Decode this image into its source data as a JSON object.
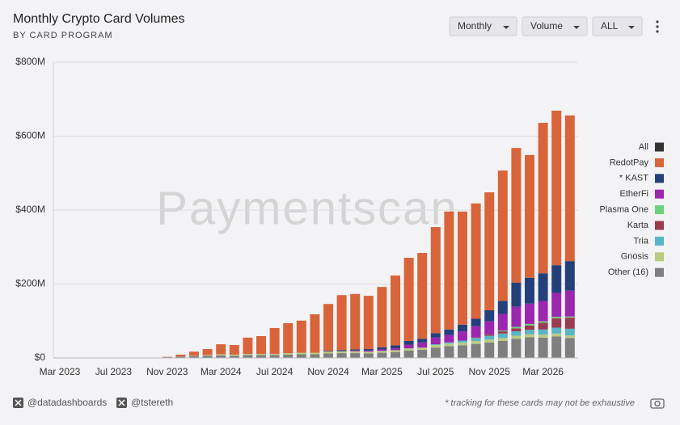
{
  "chart_data": {
    "type": "stacked_bar",
    "title": "Monthly Crypto Card Volumes",
    "subtitle": "BY CARD PROGRAM",
    "watermark": "Paymentscan",
    "footnote": "* tracking for these cards may not be exhaustive",
    "legend_all": "All",
    "legend_all_color": "#333333",
    "categories": [
      "Mar 2023",
      null,
      null,
      null,
      "Jul 2023",
      null,
      null,
      null,
      "Nov 2023",
      null,
      null,
      null,
      "Mar 2024",
      null,
      null,
      null,
      "Jul 2024",
      null,
      null,
      null,
      "Nov 2024",
      null,
      null,
      null,
      "Mar 2025",
      null,
      null,
      null,
      "Jul 2025",
      null,
      null,
      null,
      "Nov 2025",
      null,
      null,
      null,
      "Mar 2026",
      null,
      null
    ],
    "ylim": [
      0,
      800
    ],
    "yticks": [
      {
        "value": 0,
        "label": "$0"
      },
      {
        "value": 200,
        "label": "$200M"
      },
      {
        "value": 400,
        "label": "$400M"
      },
      {
        "value": 600,
        "label": "$600M"
      },
      {
        "value": 800,
        "label": "$800M"
      }
    ],
    "grid": true,
    "legend": "right",
    "series": [
      {
        "name": "RedotPay",
        "color": "#d9643a",
        "values": [
          0,
          0,
          0,
          0,
          0,
          0,
          0,
          0,
          1,
          5,
          11,
          16,
          27,
          26,
          44,
          48,
          70,
          81,
          87,
          104,
          127,
          149,
          150,
          144,
          163,
          189,
          225,
          232,
          287,
          319,
          306,
          312,
          319,
          353,
          364,
          332,
          407,
          418,
          394
        ]
      },
      {
        "name": "* KAST",
        "color": "#24407a",
        "values": [
          0,
          0,
          0,
          0,
          0,
          0,
          0,
          0,
          0,
          0,
          0,
          0,
          0,
          0,
          0,
          0,
          0,
          0,
          0,
          0,
          2,
          3,
          3,
          4,
          6,
          8,
          10,
          10,
          12,
          15,
          18,
          20,
          30,
          35,
          65,
          70,
          75,
          75,
          80
        ]
      },
      {
        "name": "EtherFi",
        "color": "#9b27b0",
        "values": [
          0,
          0,
          0,
          0,
          0,
          0,
          0,
          0,
          0,
          0,
          0,
          0,
          0,
          0,
          0,
          0,
          0,
          0,
          0,
          0,
          0,
          0,
          2,
          3,
          4,
          5,
          10,
          14,
          18,
          20,
          25,
          30,
          35,
          45,
          55,
          55,
          55,
          65,
          70
        ]
      },
      {
        "name": "Plasma One",
        "color": "#6fd07a",
        "values": [
          0,
          0,
          0,
          0,
          0,
          0,
          0,
          0,
          0,
          0,
          0,
          0,
          0,
          0,
          0,
          0,
          0,
          0,
          0,
          0,
          0,
          0,
          0,
          0,
          0,
          0,
          0,
          0,
          0,
          0,
          0,
          0,
          0,
          2,
          4,
          4,
          4,
          4,
          3
        ]
      },
      {
        "name": "Karta",
        "color": "#9a3b50",
        "values": [
          0,
          0,
          0,
          0,
          0,
          0,
          0,
          0,
          0,
          0,
          0,
          0,
          0,
          0,
          0,
          0,
          0,
          0,
          0,
          0,
          0,
          0,
          0,
          0,
          0,
          0,
          0,
          0,
          0,
          0,
          0,
          2,
          4,
          6,
          8,
          12,
          18,
          25,
          30
        ]
      },
      {
        "name": "Tria",
        "color": "#5ab4c8",
        "values": [
          0,
          0,
          0,
          0,
          0,
          0,
          0,
          0,
          0,
          0,
          0,
          0,
          0,
          0,
          0,
          0,
          0,
          0,
          0,
          0,
          0,
          0,
          0,
          0,
          0,
          0,
          0,
          0,
          2,
          3,
          5,
          8,
          10,
          12,
          12,
          12,
          14,
          16,
          18
        ]
      },
      {
        "name": "Gnosis",
        "color": "#b9cc80",
        "values": [
          0,
          0,
          0,
          0,
          0,
          0,
          0,
          0,
          0,
          0,
          1,
          2,
          3,
          3,
          3,
          3,
          3,
          4,
          4,
          4,
          5,
          5,
          5,
          5,
          5,
          5,
          6,
          6,
          7,
          7,
          8,
          8,
          8,
          8,
          8,
          8,
          8,
          8,
          7
        ]
      },
      {
        "name": "Other (16)",
        "color": "#7f7f7f",
        "values": [
          1,
          1,
          1,
          0.5,
          1,
          1,
          1,
          1,
          2,
          4,
          5,
          6,
          7,
          6,
          8,
          8,
          8,
          9,
          10,
          10,
          12,
          13,
          13,
          12,
          14,
          16,
          20,
          22,
          28,
          32,
          34,
          38,
          42,
          46,
          52,
          56,
          55,
          58,
          54
        ]
      }
    ]
  },
  "controls": [
    "Monthly",
    "Volume",
    "ALL"
  ],
  "footer": [
    "@datadashboards",
    "@tstereth"
  ]
}
